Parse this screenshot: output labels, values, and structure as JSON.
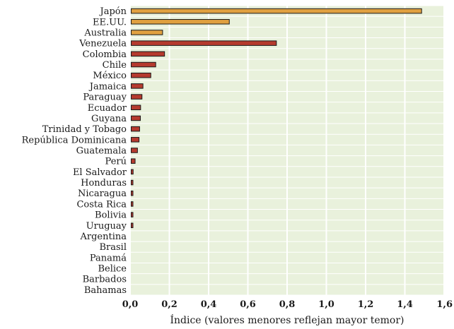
{
  "chart_data": {
    "type": "bar",
    "orientation": "horizontal",
    "categories": [
      "Japón",
      "EE.UU.",
      "Australia",
      "Venezuela",
      "Colombia",
      "Chile",
      "México",
      "Jamaica",
      "Paraguay",
      "Ecuador",
      "Guyana",
      "Trinidad y Tobago",
      "República Dominicana",
      "Guatemala",
      "Perú",
      "El Salvador",
      "Honduras",
      "Nicaragua",
      "Costa Rica",
      "Bolivia",
      "Uruguay",
      "Argentina",
      "Brasil",
      "Panamá",
      "Belice",
      "Barbados",
      "Bahamas"
    ],
    "values": [
      1.48,
      0.5,
      0.16,
      0.74,
      0.17,
      0.125,
      0.1,
      0.06,
      0.055,
      0.048,
      0.047,
      0.043,
      0.04,
      0.032,
      0.02,
      0.01,
      0.009,
      0.008,
      0.007,
      0.006,
      0.005,
      0,
      0,
      0,
      0,
      0,
      0
    ],
    "group": [
      "other",
      "other",
      "other",
      "latam",
      "latam",
      "latam",
      "latam",
      "latam",
      "latam",
      "latam",
      "latam",
      "latam",
      "latam",
      "latam",
      "latam",
      "latam",
      "latam",
      "latam",
      "latam",
      "latam",
      "latam",
      "latam",
      "latam",
      "latam",
      "latam",
      "latam",
      "latam"
    ],
    "colors": {
      "other": "#e0a040",
      "latam": "#b53a2e",
      "plot_bg": "#e9f1dc",
      "grid": "#ffffff",
      "bar_edge": "#1a1a1a"
    },
    "xlim": [
      0,
      1.6
    ],
    "xticks": [
      0,
      0.2,
      0.4,
      0.6,
      0.8,
      1.0,
      1.2,
      1.4,
      1.6
    ],
    "xtick_labels": [
      "0,0",
      "0,2",
      "0,4",
      "0,6",
      "0,8",
      "1,0",
      "1,2",
      "1,4",
      "1,6"
    ],
    "xlabel": "Índice (valores menores reflejan mayor temor)",
    "ylabel": "",
    "title": "",
    "grid": true,
    "legend": "none"
  }
}
